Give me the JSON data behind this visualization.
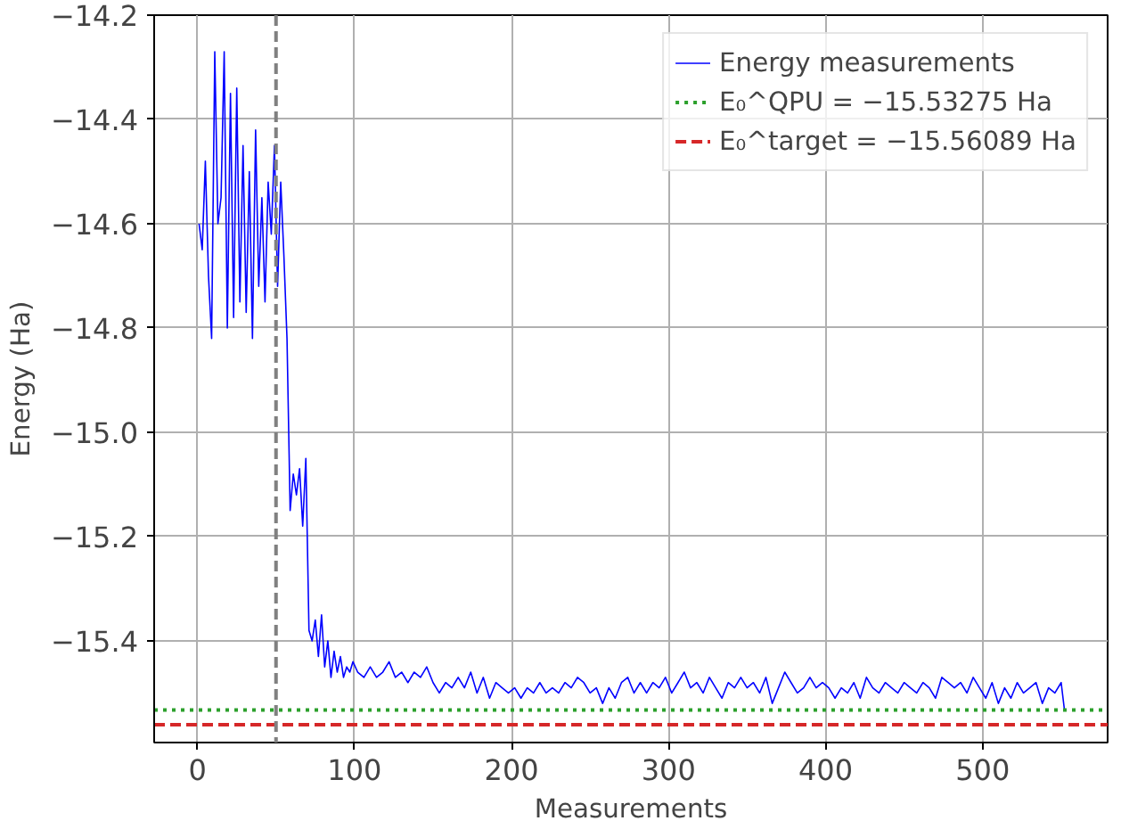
{
  "chart_data": {
    "type": "line",
    "xlabel": "Measurements",
    "ylabel": "Energy (Ha)",
    "xlim": [
      -27.6,
      579.6
    ],
    "ylim": [
      -15.595,
      -14.2
    ],
    "xticks": [
      0,
      100,
      200,
      300,
      400,
      500
    ],
    "yticks": [
      {
        "value": -15.4,
        "label": "−15.4"
      },
      {
        "value": -15.2,
        "label": "−15.2"
      },
      {
        "value": -15.0,
        "label": "−15.0"
      },
      {
        "value": -14.8,
        "label": "−14.8"
      },
      {
        "value": -14.6,
        "label": "−14.6"
      },
      {
        "value": -14.4,
        "label": "−14.4"
      },
      {
        "value": -14.2,
        "label": "−14.2"
      }
    ],
    "grid": true,
    "legend": "top right",
    "x": [
      1,
      3,
      5,
      7,
      9,
      11,
      13,
      15,
      17,
      19,
      21,
      23,
      25,
      27,
      29,
      31,
      33,
      35,
      37,
      39,
      41,
      43,
      45,
      47,
      49,
      51,
      53,
      55,
      57,
      59,
      61,
      63,
      65,
      67,
      69,
      71,
      73,
      75,
      77,
      79,
      81,
      83,
      85,
      87,
      89,
      91,
      93,
      95,
      97,
      99,
      102,
      106,
      110,
      114,
      118,
      122,
      126,
      130,
      134,
      138,
      142,
      146,
      150,
      154,
      158,
      162,
      166,
      170,
      174,
      178,
      182,
      186,
      190,
      194,
      198,
      202,
      206,
      210,
      214,
      218,
      222,
      226,
      230,
      234,
      238,
      242,
      246,
      250,
      254,
      258,
      262,
      266,
      270,
      274,
      278,
      282,
      286,
      290,
      294,
      298,
      302,
      306,
      310,
      314,
      318,
      322,
      326,
      330,
      334,
      338,
      342,
      346,
      350,
      354,
      358,
      362,
      366,
      370,
      374,
      378,
      382,
      386,
      390,
      394,
      398,
      402,
      406,
      410,
      414,
      418,
      422,
      426,
      430,
      434,
      438,
      442,
      446,
      450,
      454,
      458,
      462,
      466,
      470,
      474,
      478,
      482,
      486,
      490,
      494,
      498,
      502,
      506,
      510,
      514,
      518,
      522,
      526,
      530,
      534,
      538,
      542,
      546,
      550,
      552
    ],
    "series": [
      {
        "name": "Energy measurements",
        "color": "#0000ff",
        "values": [
          -14.6,
          -14.65,
          -14.48,
          -14.7,
          -14.82,
          -14.27,
          -14.6,
          -14.55,
          -14.27,
          -14.8,
          -14.35,
          -14.78,
          -14.34,
          -14.75,
          -14.45,
          -14.77,
          -14.5,
          -14.82,
          -14.42,
          -14.72,
          -14.55,
          -14.75,
          -14.52,
          -14.62,
          -14.45,
          -14.72,
          -14.52,
          -14.66,
          -14.82,
          -15.15,
          -15.08,
          -15.12,
          -15.07,
          -15.18,
          -15.05,
          -15.38,
          -15.4,
          -15.36,
          -15.43,
          -15.35,
          -15.45,
          -15.4,
          -15.47,
          -15.42,
          -15.46,
          -15.43,
          -15.47,
          -15.45,
          -15.46,
          -15.44,
          -15.46,
          -15.47,
          -15.45,
          -15.47,
          -15.46,
          -15.44,
          -15.47,
          -15.46,
          -15.48,
          -15.46,
          -15.47,
          -15.45,
          -15.48,
          -15.5,
          -15.48,
          -15.49,
          -15.47,
          -15.49,
          -15.46,
          -15.5,
          -15.47,
          -15.51,
          -15.48,
          -15.49,
          -15.5,
          -15.49,
          -15.51,
          -15.49,
          -15.5,
          -15.48,
          -15.5,
          -15.49,
          -15.5,
          -15.48,
          -15.49,
          -15.47,
          -15.48,
          -15.5,
          -15.49,
          -15.52,
          -15.49,
          -15.51,
          -15.48,
          -15.47,
          -15.5,
          -15.48,
          -15.5,
          -15.48,
          -15.49,
          -15.47,
          -15.5,
          -15.48,
          -15.46,
          -15.49,
          -15.48,
          -15.5,
          -15.47,
          -15.49,
          -15.51,
          -15.48,
          -15.49,
          -15.47,
          -15.49,
          -15.48,
          -15.5,
          -15.47,
          -15.52,
          -15.49,
          -15.46,
          -15.48,
          -15.5,
          -15.49,
          -15.47,
          -15.49,
          -15.48,
          -15.49,
          -15.51,
          -15.49,
          -15.5,
          -15.48,
          -15.51,
          -15.47,
          -15.49,
          -15.5,
          -15.48,
          -15.49,
          -15.5,
          -15.48,
          -15.49,
          -15.5,
          -15.48,
          -15.49,
          -15.51,
          -15.47,
          -15.48,
          -15.49,
          -15.48,
          -15.5,
          -15.47,
          -15.49,
          -15.51,
          -15.48,
          -15.52,
          -15.49,
          -15.51,
          -15.48,
          -15.5,
          -15.49,
          -15.48,
          -15.52,
          -15.49,
          -15.5,
          -15.48,
          -15.53
        ]
      }
    ],
    "ref_lines": [
      {
        "axis": "y",
        "value": -15.53275,
        "label": "E₀^QPU = −15.53275 Ha",
        "color": "#2ca02c",
        "line_style": "dotted"
      },
      {
        "axis": "y",
        "value": -15.56089,
        "label": "E₀^target = −15.56089 Ha",
        "color": "#d62728",
        "line_style": "dashed"
      },
      {
        "axis": "x",
        "value": 50,
        "color": "#808080",
        "line_style": "dashed"
      }
    ]
  }
}
